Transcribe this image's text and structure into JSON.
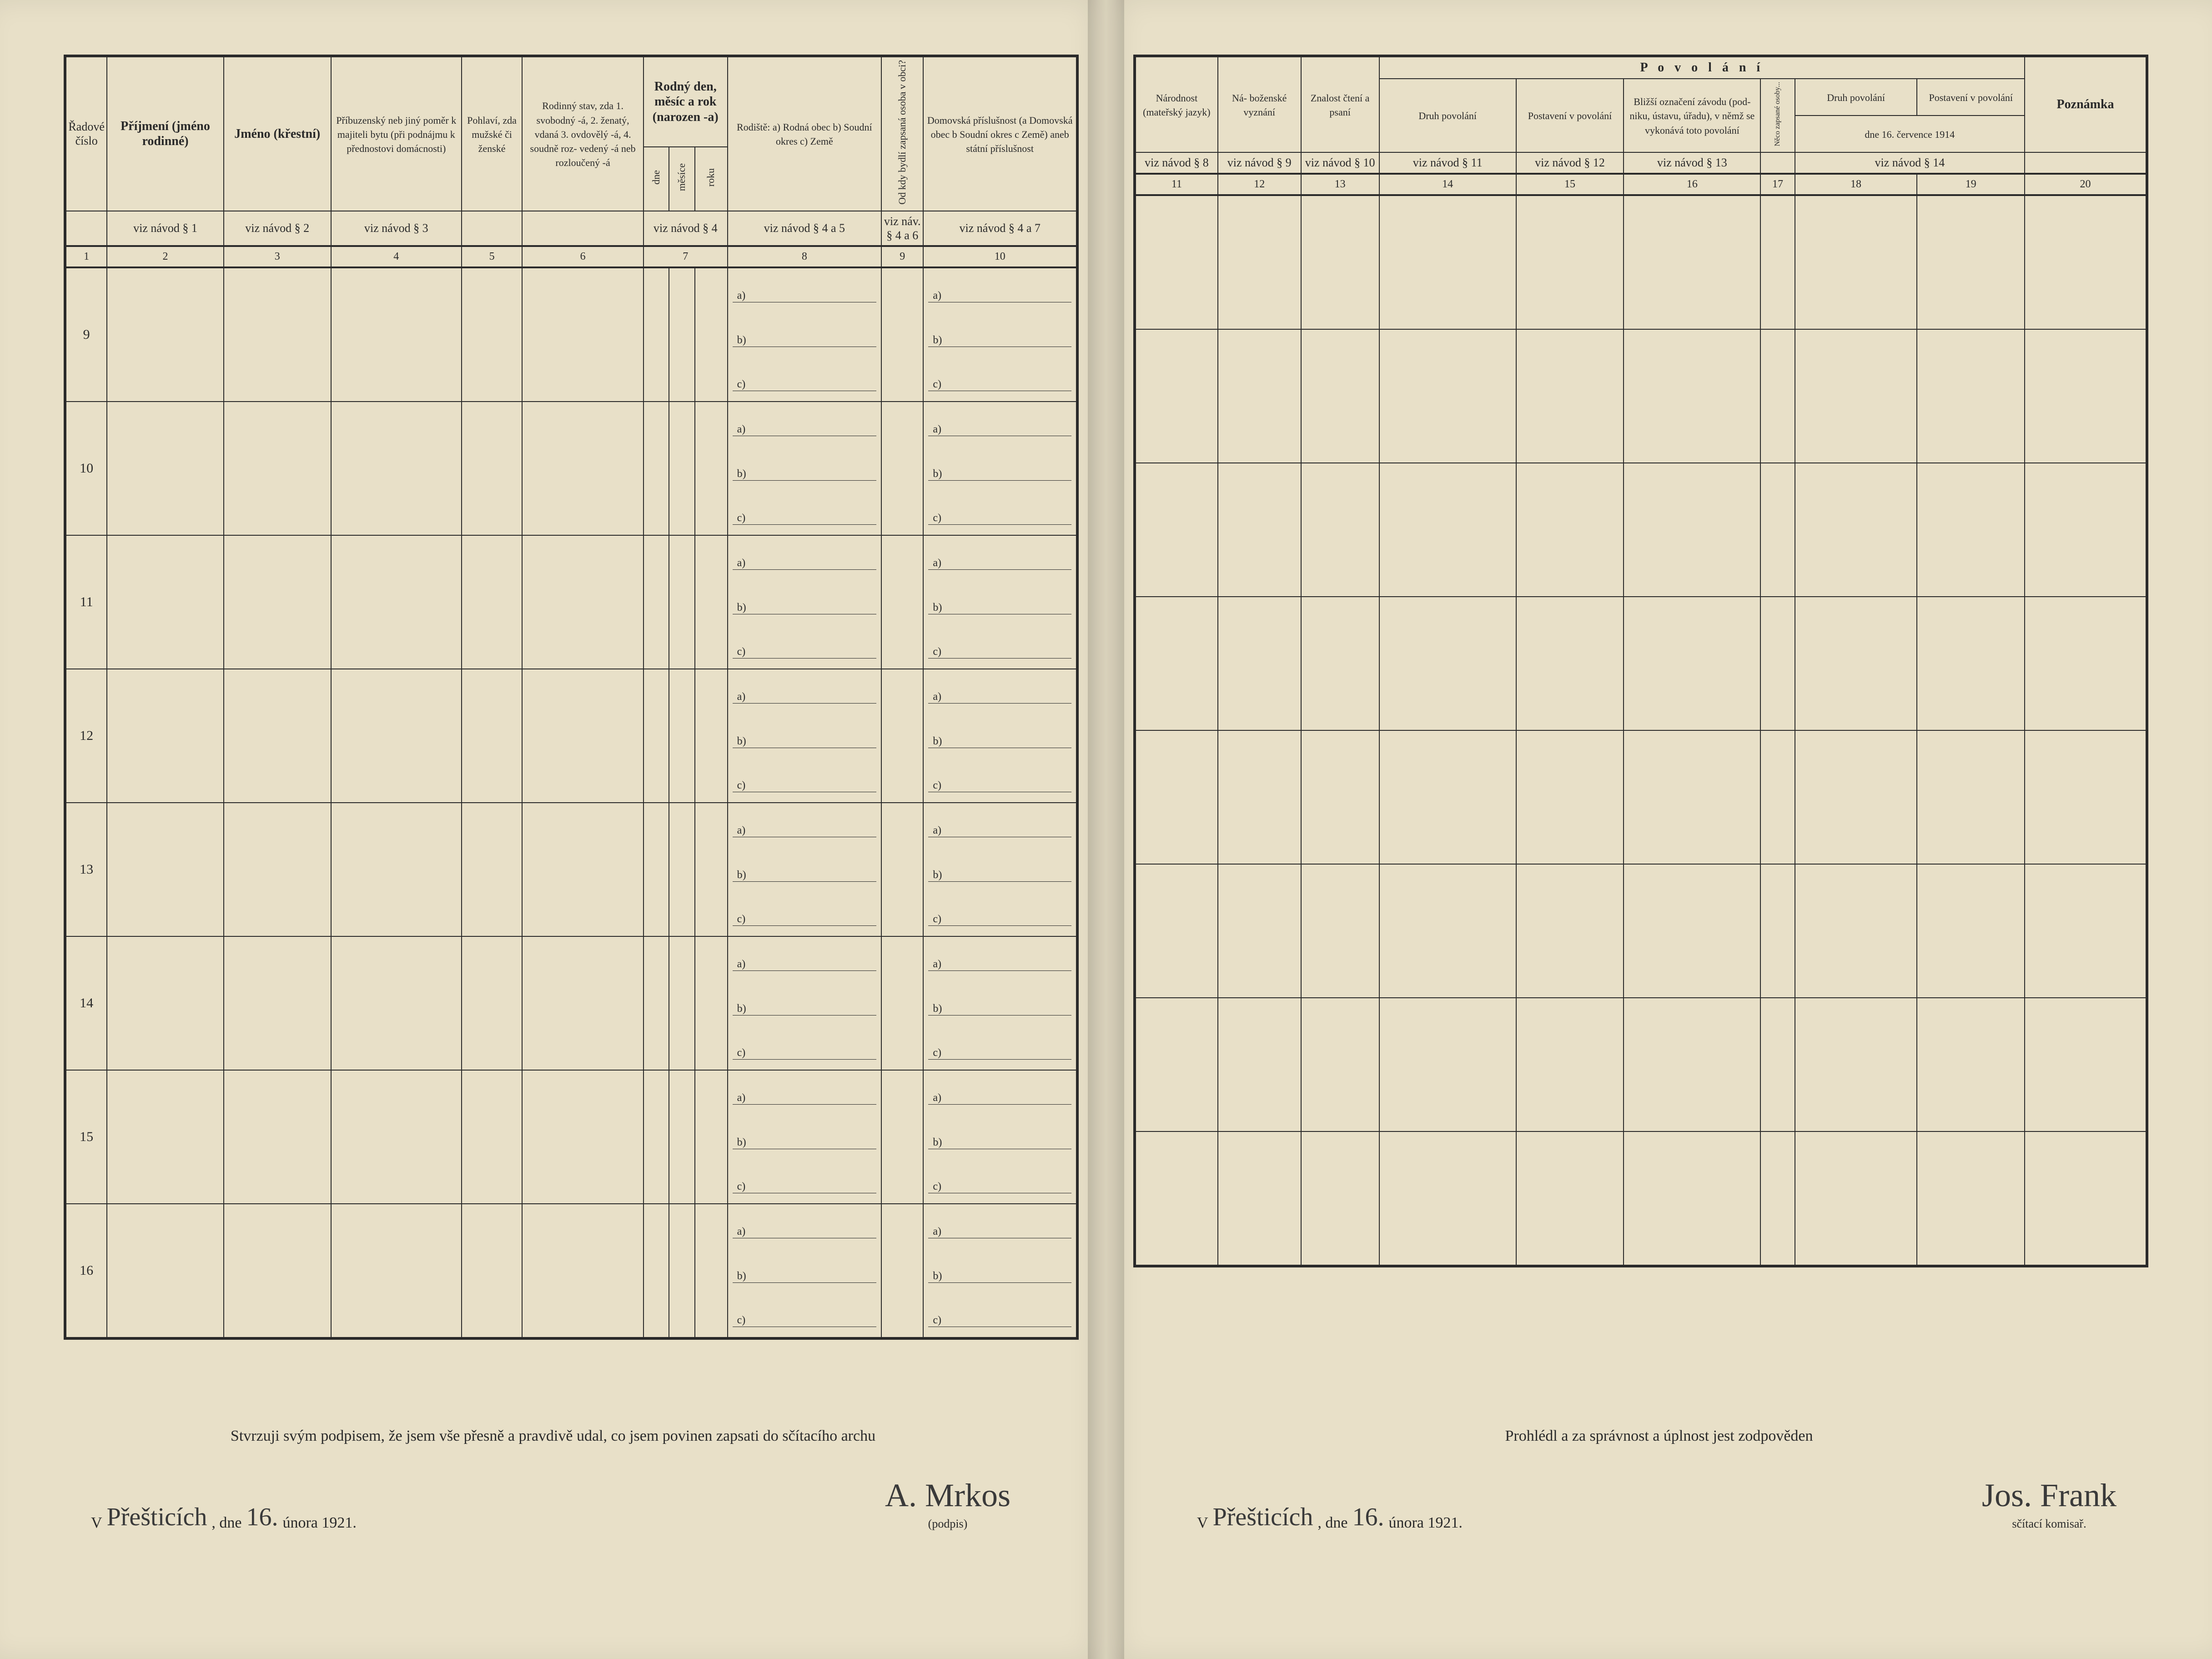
{
  "left": {
    "headers": {
      "c1": "Řadové číslo",
      "c2": "Příjmení (jméno rodinné)",
      "c3": "Jméno (křestní)",
      "c4": "Příbuzenský neb jiný poměr k majiteli bytu (při podnájmu k přednostovi domácnosti)",
      "c5": "Pohlaví, zda mužské či ženské",
      "c6": "Rodinný stav, zda 1. svobodný -á, 2. ženatý, vdaná 3. ovdovělý -á, 4. soudně roz- vedený -á neb rozloučený -á",
      "c7": "Rodný den, měsíc a rok (narozen -a)",
      "c7a": "dne",
      "c7b": "měsíce",
      "c7c": "roku",
      "c8": "Rodiště: a) Rodná obec b) Soudní okres c) Země",
      "c9": "Od kdy bydlí zapsaná osoba v obci?",
      "c10": "Domovská příslušnost (a Domovská obec b Soudní okres c Země) aneb státní příslušnost"
    },
    "refs": {
      "c2": "viz návod § 1",
      "c3": "viz návod § 2",
      "c4": "viz návod § 3",
      "c7": "viz návod § 4",
      "c8": "viz návod § 4 a 5",
      "c9": "viz náv. § 4 a 6",
      "c10": "viz návod § 4 a 7"
    },
    "colnums": [
      "1",
      "2",
      "3",
      "4",
      "5",
      "6",
      "7",
      "8",
      "9",
      "10"
    ],
    "rows": [
      "9",
      "10",
      "11",
      "12",
      "13",
      "14",
      "15",
      "16"
    ],
    "sublabels": [
      "a)",
      "b)",
      "c)"
    ],
    "footer": {
      "declaration": "Stvrzuji svým podpisem, že jsem vše přesně a pravdivě udal, co jsem povinen zapsati do sčítacího archu",
      "place_prefix": "V",
      "place_hand": "Přešticích",
      "date_prefix": ", dne",
      "date_hand": "16.",
      "date_suffix": "února 1921.",
      "sig_label": "(podpis)",
      "signature": "A. Mrkos"
    }
  },
  "right": {
    "headers": {
      "c11": "Národnost (mateřský jazyk)",
      "c12": "Ná- boženské vyznání",
      "c13": "Znalost čtení a psaní",
      "povolani": "P o v o l á n í",
      "c14": "Druh povolání",
      "c15": "Postavení v povolání",
      "c16": "Bližší označení závodu (pod- niku, ústavu, úřadu), v němž se vykonává toto povolání",
      "c17v": "Něco zapsané osoby...",
      "c1819_top": "dne 16. července 1914",
      "c18": "Druh povolání",
      "c19": "Postavení v povolání",
      "c20": "Poznámka"
    },
    "refs": {
      "c11": "viz návod § 8",
      "c12": "viz návod § 9",
      "c13": "viz návod § 10",
      "c14": "viz návod § 11",
      "c15": "viz návod § 12",
      "c16": "viz návod § 13",
      "c1819": "viz návod § 14"
    },
    "colnums": [
      "11",
      "12",
      "13",
      "14",
      "15",
      "16",
      "17",
      "18",
      "19",
      "20"
    ],
    "rowcount": 8,
    "footer": {
      "declaration": "Prohlédl a za správnost a úplnost jest zodpověden",
      "place_prefix": "V",
      "place_hand": "Přešticích",
      "date_prefix": ", dne",
      "date_hand": "16.",
      "date_suffix": "února 1921.",
      "sig_label": "sčítací komisař.",
      "signature": "Jos. Frank"
    }
  }
}
